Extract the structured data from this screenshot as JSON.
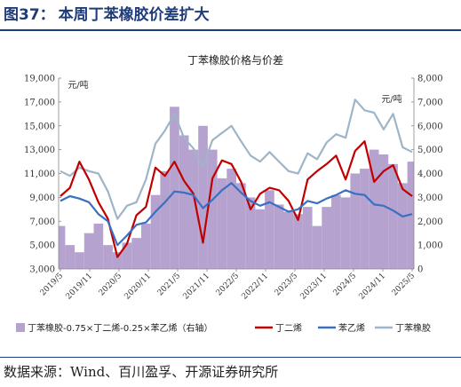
{
  "header": {
    "figure_number": "图37：",
    "title": "本周丁苯橡胶价差扩大"
  },
  "footer": {
    "source": "数据来源：Wind、百川盈孚、开源证券研究所"
  },
  "colors": {
    "spread_area": "#b6a2cf",
    "butadiene": "#c00000",
    "styrene": "#3a6fc2",
    "sbr": "#9fb5c7",
    "title_blue": "#1f3c7a"
  },
  "chart_data": {
    "type": "line",
    "title": "丁苯橡胶价格与价差",
    "left_axis_unit": "元/吨",
    "right_axis_unit": "元/吨",
    "ylim_left": [
      3000,
      19000
    ],
    "ylim_right": [
      0,
      8000
    ],
    "yticks_left": [
      "19,000",
      "17,000",
      "15,000",
      "13,000",
      "11,000",
      "9,000",
      "7,000",
      "5,000",
      "3,000"
    ],
    "yticks_right": [
      "8,000",
      "7,000",
      "6,000",
      "5,000",
      "4,000",
      "3,000",
      "2,000",
      "1,000",
      "0"
    ],
    "x_tick_labels": [
      "2019/5",
      "2019/11",
      "2020/5",
      "2020/11",
      "2021/5",
      "2021/11",
      "2022/5",
      "2022/11",
      "2023/5",
      "2023/11",
      "2024/5",
      "2024/11",
      "2025/5"
    ],
    "x": [
      "2019/5",
      "2019/7",
      "2019/9",
      "2019/11",
      "2020/1",
      "2020/3",
      "2020/5",
      "2020/7",
      "2020/9",
      "2020/11",
      "2021/1",
      "2021/3",
      "2021/5",
      "2021/7",
      "2021/9",
      "2021/11",
      "2022/1",
      "2022/3",
      "2022/5",
      "2022/7",
      "2022/9",
      "2022/11",
      "2023/1",
      "2023/3",
      "2023/5",
      "2023/7",
      "2023/9",
      "2023/11",
      "2024/1",
      "2024/3",
      "2024/5",
      "2024/7",
      "2024/9",
      "2024/11",
      "2025/1",
      "2025/3",
      "2025/5",
      "2025/6"
    ],
    "series": [
      {
        "name": "丁苯橡胶-0.75×丁二烯-0.25×苯乙烯（右轴）",
        "type": "area",
        "axis": "right",
        "values": [
          1800,
          1000,
          700,
          1500,
          1900,
          1000,
          700,
          1100,
          1300,
          1900,
          3100,
          4100,
          6800,
          5600,
          5000,
          6000,
          5000,
          3800,
          4200,
          3600,
          3000,
          2500,
          3300,
          2700,
          2400,
          2300,
          2600,
          1800,
          2600,
          3100,
          3000,
          4000,
          4200,
          5000,
          4800,
          4400,
          3600,
          4500
        ]
      },
      {
        "name": "丁二烯",
        "type": "line",
        "axis": "left",
        "values": [
          9100,
          9800,
          12000,
          10500,
          8600,
          7200,
          4000,
          5100,
          7500,
          8200,
          11500,
          10800,
          12000,
          10400,
          9300,
          5200,
          10600,
          12100,
          11800,
          10300,
          8000,
          9300,
          9800,
          9600,
          8700,
          7100,
          10500,
          11200,
          11800,
          12500,
          10500,
          12900,
          13700,
          10300,
          11200,
          11700,
          9700,
          9100
        ]
      },
      {
        "name": "苯乙烯",
        "type": "line",
        "axis": "left",
        "values": [
          8700,
          9100,
          8900,
          8600,
          7600,
          7000,
          5000,
          5800,
          6700,
          6900,
          7800,
          8600,
          9500,
          9400,
          9200,
          8100,
          8800,
          9600,
          10200,
          9400,
          8700,
          8300,
          8600,
          8200,
          7800,
          8000,
          8700,
          8500,
          8900,
          9200,
          9600,
          9300,
          9200,
          8400,
          8300,
          7900,
          7400,
          7600
        ]
      },
      {
        "name": "丁苯橡胶",
        "type": "line",
        "axis": "left",
        "values": [
          11200,
          10800,
          11500,
          11200,
          11000,
          9500,
          7200,
          8300,
          8600,
          10500,
          13500,
          14600,
          16000,
          14000,
          13100,
          11600,
          13800,
          14400,
          15000,
          13700,
          12500,
          12000,
          12800,
          12000,
          11200,
          11000,
          12700,
          12200,
          13600,
          14300,
          14000,
          17200,
          16300,
          16100,
          14700,
          16000,
          13200,
          12800
        ]
      }
    ],
    "legend_position": "bottom"
  }
}
